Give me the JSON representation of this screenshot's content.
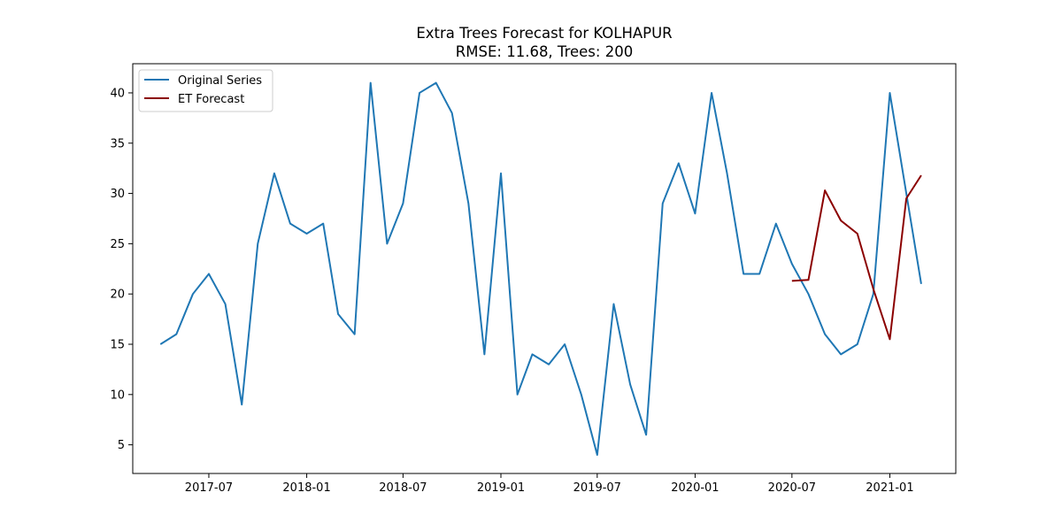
{
  "chart_data": {
    "type": "line",
    "title": "Extra Trees Forecast for KOLHAPUR",
    "subtitle": "RMSE: 11.68, Trees: 200",
    "xlabel": "",
    "ylabel": "",
    "x_ticks": [
      "2017-07",
      "2018-01",
      "2018-07",
      "2019-01",
      "2019-07",
      "2020-01",
      "2020-07",
      "2021-01"
    ],
    "y_ticks": [
      5,
      10,
      15,
      20,
      25,
      30,
      35,
      40
    ],
    "xlim": [
      "2017-02-08",
      "2021-05-05"
    ],
    "ylim": [
      2.15,
      42.9
    ],
    "grid": false,
    "legend_position": "top-left",
    "series": [
      {
        "name": "Original Series",
        "color": "#1f77b4",
        "x": [
          "2017-04-01",
          "2017-05-01",
          "2017-06-01",
          "2017-07-01",
          "2017-08-01",
          "2017-09-01",
          "2017-10-01",
          "2017-11-01",
          "2017-12-01",
          "2018-01-01",
          "2018-02-01",
          "2018-03-01",
          "2018-04-01",
          "2018-05-01",
          "2018-06-01",
          "2018-07-01",
          "2018-08-01",
          "2018-09-01",
          "2018-10-01",
          "2018-11-01",
          "2018-12-01",
          "2019-01-01",
          "2019-02-01",
          "2019-03-01",
          "2019-04-01",
          "2019-05-01",
          "2019-06-01",
          "2019-07-01",
          "2019-08-01",
          "2019-09-01",
          "2019-10-01",
          "2019-11-01",
          "2019-12-01",
          "2020-01-01",
          "2020-02-01",
          "2020-03-01",
          "2020-04-01",
          "2020-05-01",
          "2020-06-01",
          "2020-07-01",
          "2020-08-01",
          "2020-09-01",
          "2020-10-01",
          "2020-11-01",
          "2020-12-01",
          "2021-01-01",
          "2021-02-01",
          "2021-03-01"
        ],
        "values": [
          15,
          16,
          20,
          22,
          19,
          9,
          25,
          32,
          27,
          26,
          27,
          18,
          16,
          41,
          25,
          29,
          40,
          41,
          38,
          29,
          14,
          32,
          10,
          14,
          13,
          15,
          10,
          4,
          19,
          11,
          6,
          29,
          33,
          28,
          40,
          32,
          22,
          22,
          27,
          23,
          20,
          16,
          14,
          15,
          20,
          40,
          30,
          21
        ]
      },
      {
        "name": "ET Forecast",
        "color": "#8b0000",
        "x": [
          "2020-07-01",
          "2020-08-01",
          "2020-09-01",
          "2020-10-01",
          "2020-11-01",
          "2020-12-01",
          "2021-01-01",
          "2021-02-01",
          "2021-03-01"
        ],
        "values": [
          21.3,
          21.4,
          30.3,
          27.3,
          26.0,
          20.5,
          15.5,
          29.5,
          31.8
        ]
      }
    ]
  }
}
